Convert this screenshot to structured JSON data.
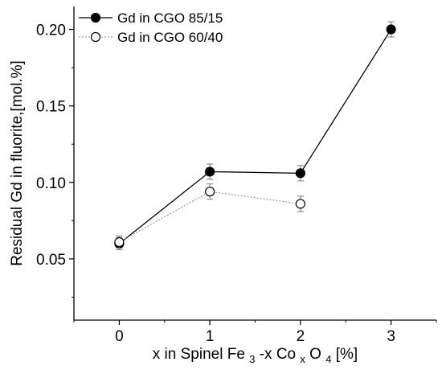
{
  "chart_data": {
    "type": "line",
    "title": "",
    "xlabel": {
      "prefix": "x in Spinel Fe",
      "sub1": "3",
      "mid1": "-x",
      "elem": "Co",
      "sub2": "x",
      "mid2": "O",
      "sub3": "4",
      "suffix": " [%]"
    },
    "ylabel": "Residual Gd in fluorite,[mol.%]",
    "xlim": [
      -0.5,
      3.5
    ],
    "ylim": [
      0.01,
      0.215
    ],
    "xticks": [
      "0",
      "1",
      "2",
      "3"
    ],
    "yticks": [
      "0.05",
      "0.10",
      "0.15",
      "0.20"
    ],
    "grid": false,
    "legend_position": "top-left",
    "series": [
      {
        "name": "Gd in CGO 85/15",
        "marker": "filled-circle",
        "line": "solid",
        "color": "#000000",
        "x": [
          0,
          1,
          2,
          3
        ],
        "y": [
          0.06,
          0.107,
          0.106,
          0.2
        ],
        "err": [
          0.004,
          0.005,
          0.005,
          0.005
        ]
      },
      {
        "name": "Gd in CGO 60/40",
        "marker": "open-circle",
        "line": "dotted",
        "color": "#888888",
        "x": [
          0,
          1,
          2
        ],
        "y": [
          0.061,
          0.094,
          0.086
        ],
        "err": [
          0.004,
          0.005,
          0.005
        ]
      }
    ]
  }
}
